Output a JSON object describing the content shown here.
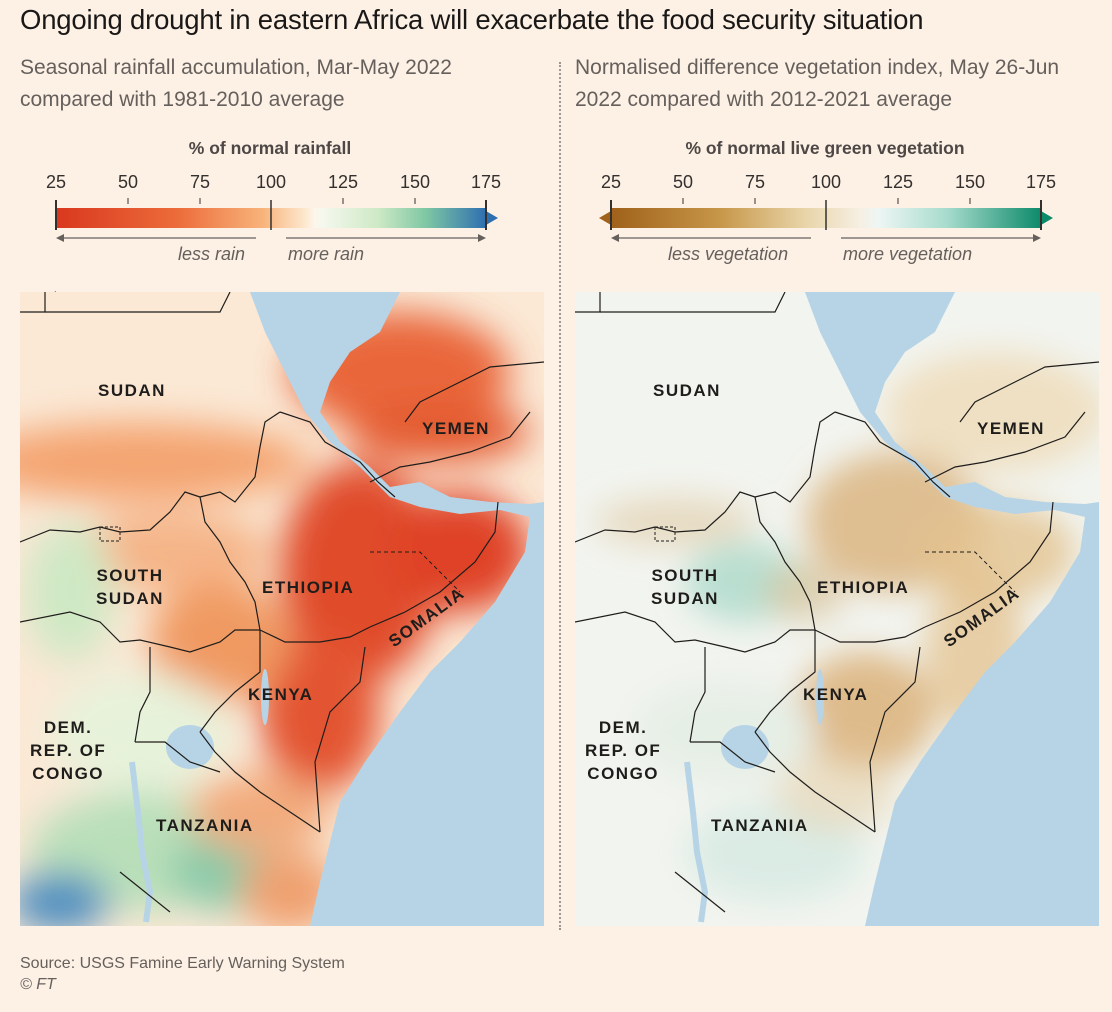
{
  "title": "Ongoing drought in eastern Africa will exacerbate the food security situation",
  "colors": {
    "background": "#fdf1e6",
    "sea": "#b7d4e6",
    "dry_strong": "#d9381e",
    "wet_strong": "#2e6fb0",
    "veg_low": "#a0611a",
    "veg_high": "#0d8a6a"
  },
  "panels": {
    "rain": {
      "subtitle": "Seasonal rainfall accumulation, Mar-May 2022 compared with 1981-2010 average",
      "legend_title": "% of normal rainfall",
      "ticks": [
        "25",
        "50",
        "75",
        "100",
        "125",
        "150",
        "175"
      ],
      "note_left": "less rain",
      "note_right": "more rain"
    },
    "veg": {
      "subtitle": "Normalised difference vegetation index, May 26-Jun 2022 compared with 2012-2021 average",
      "legend_title": "% of normal live green vegetation",
      "ticks": [
        "25",
        "50",
        "75",
        "100",
        "125",
        "150",
        "175"
      ],
      "note_left": "less vegetation",
      "note_right": "more vegetation"
    }
  },
  "map_labels": {
    "sudan": "SUDAN",
    "yemen": "YEMEN",
    "south_sudan": "SOUTH\nSUDAN",
    "ethiopia": "ETHIOPIA",
    "somalia": "SOMALIA",
    "kenya": "KENYA",
    "drc": "DEM.\nREP. OF\nCONGO",
    "tanzania": "TANZANIA"
  },
  "source": "Source: USGS Famine Early Warning System",
  "credit": "© FT"
}
